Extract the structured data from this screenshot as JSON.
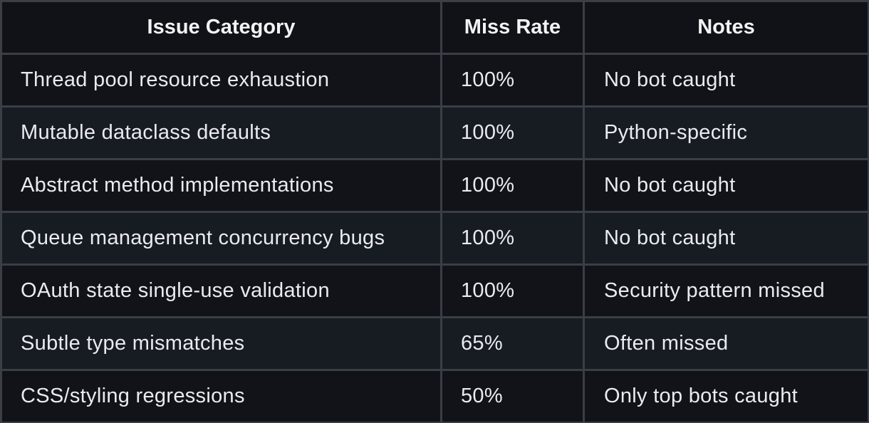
{
  "table": {
    "headers": [
      "Issue Category",
      "Miss Rate",
      "Notes"
    ],
    "rows": [
      {
        "category": "Thread pool resource exhaustion",
        "miss_rate": "100%",
        "notes": "No bot caught"
      },
      {
        "category": "Mutable dataclass defaults",
        "miss_rate": "100%",
        "notes": "Python-specific"
      },
      {
        "category": "Abstract method implementations",
        "miss_rate": "100%",
        "notes": "No bot caught"
      },
      {
        "category": "Queue management concurrency bugs",
        "miss_rate": "100%",
        "notes": "No bot caught"
      },
      {
        "category": "OAuth state single-use validation",
        "miss_rate": "100%",
        "notes": "Security pattern missed"
      },
      {
        "category": "Subtle type mismatches",
        "miss_rate": "65%",
        "notes": "Often missed"
      },
      {
        "category": "CSS/styling regressions",
        "miss_rate": "50%",
        "notes": "Only top bots caught"
      }
    ]
  }
}
